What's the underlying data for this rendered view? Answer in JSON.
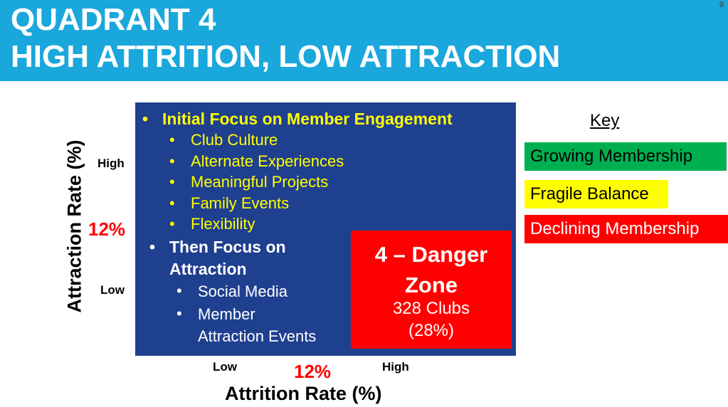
{
  "slide": {
    "page_number": "9",
    "title_line1": "QUADRANT 4",
    "title_line2": "HIGH ATTRITION, LOW ATTRACTION",
    "colors": {
      "title_bar": "#1aa7dc",
      "quadrant_bg": "#1f3f8f",
      "highlight_text": "#ffff00",
      "danger": "#ff0000",
      "growing": "#00b050"
    }
  },
  "y_axis": {
    "label": "Attraction Rate (%)",
    "high": "High",
    "low": "Low",
    "mid": "12%"
  },
  "x_axis": {
    "label": "Attrition Rate (%)",
    "low": "Low",
    "high": "High",
    "mid": "12%"
  },
  "quadrant": {
    "bullet_symbol": "•",
    "focus_engagement": "Initial Focus on Member Engagement",
    "engagement_items": [
      "Club Culture",
      "Alternate Experiences",
      "Meaningful Projects",
      "Family Events",
      "Flexibility"
    ],
    "focus_attraction_line1": "Then Focus on",
    "focus_attraction_line2": "Attraction",
    "attraction_items": [
      "Social Media",
      "Member",
      "Attraction Events"
    ],
    "danger": {
      "title_line1": "4 – Danger",
      "title_line2": "Zone",
      "count": "328 Clubs",
      "percent": "(28%)"
    }
  },
  "key": {
    "title": "Key",
    "items": [
      "Growing Membership",
      "Fragile Balance",
      "Declining Membership"
    ]
  }
}
